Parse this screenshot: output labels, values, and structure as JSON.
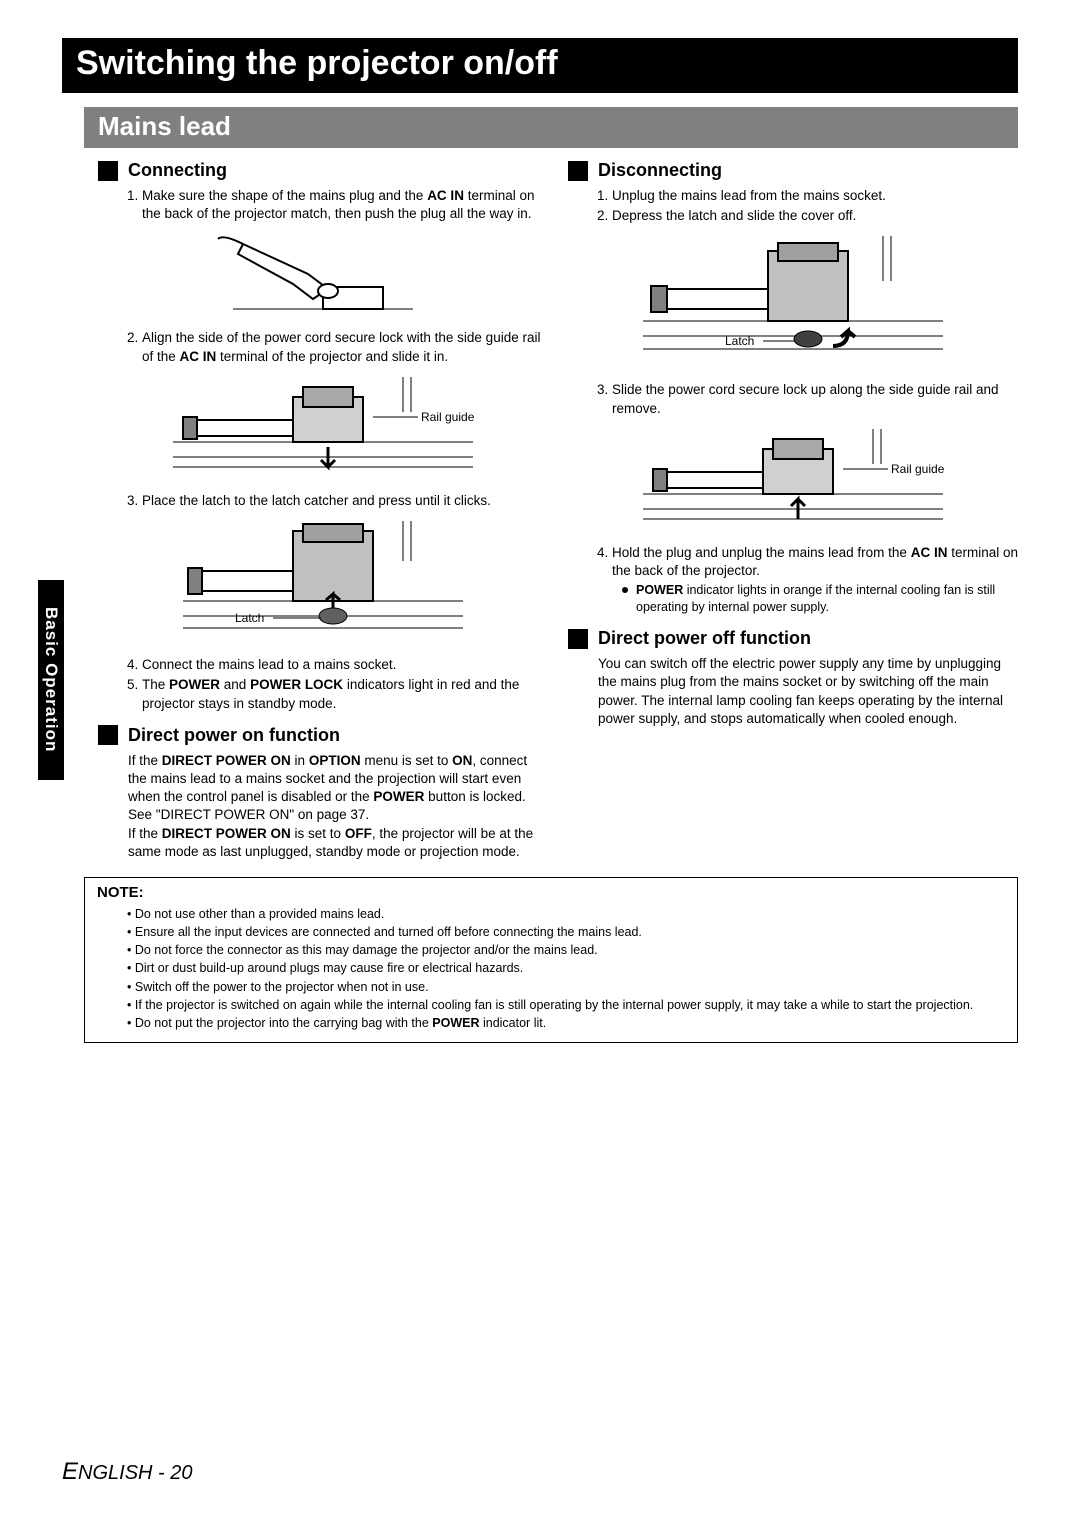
{
  "colors": {
    "black": "#000000",
    "gray": "#808080",
    "white": "#ffffff"
  },
  "main_title": "Switching the projector on/off",
  "section_title": "Mains lead",
  "side_tab": "Basic Operation",
  "left": {
    "connecting_heading": "Connecting",
    "steps_a": [
      "Make sure the shape of the mains plug and the <b>AC IN</b> terminal on the back of the projector match, then push the plug all the way in."
    ],
    "steps_b": [
      "Align the side of the power cord secure lock with the side guide rail of the <b>AC IN</b> terminal of the projector and slide it in."
    ],
    "steps_c": [
      "Place the latch to the latch catcher and press until it clicks."
    ],
    "steps_d": [
      "Connect the mains lead to a mains socket.",
      "The <b>POWER</b> and <b>POWER LOCK</b> indicators light in red and the projector stays in standby mode."
    ],
    "direct_on_heading": "Direct power on function",
    "direct_on_body": "If the <b>DIRECT POWER ON</b> in <b>OPTION</b> menu is set to <b>ON</b>, connect the mains lead to a mains socket and the projection will start even when the control panel is disabled or the <b>POWER</b> button is locked. See \"DIRECT POWER ON\" on page 37.<br>If the <b>DIRECT POWER ON</b> is set to <b>OFF</b>, the projector will be at the same mode as last unplugged, standby mode or projection mode.",
    "fig_labels": {
      "rail_guide": "Rail guide",
      "latch": "Latch"
    }
  },
  "right": {
    "disconnecting_heading": "Disconnecting",
    "steps_a": [
      "Unplug the mains lead from the mains socket.",
      "Depress the latch and slide the cover off."
    ],
    "steps_b": [
      "Slide the power cord secure lock up along the side guide rail and remove."
    ],
    "steps_c": [
      "Hold the plug and unplug the mains lead from the <b>AC IN</b> terminal on the back of the projector."
    ],
    "sub_bullet": "<b>POWER</b> indicator lights in orange if the internal cooling fan is still operating by internal power supply.",
    "direct_off_heading": "Direct power off function",
    "direct_off_body": "You can switch off the electric power supply any time by unplugging the mains plug from the mains socket or by switching off the main power. The internal lamp cooling fan keeps operating by the internal power supply, and stops automatically when cooled enough.",
    "fig_labels": {
      "rail_guide": "Rail guide",
      "latch": "Latch"
    }
  },
  "note": {
    "title": "NOTE:",
    "items": [
      "Do not use other than a provided mains lead.",
      "Ensure all the input devices are connected and turned off before connecting the mains lead.",
      "Do not force the connector as this may damage the projector and/or the mains lead.",
      "Dirt or dust build-up around plugs may cause fire or electrical hazards.",
      "Switch off the power to the projector when not in use.",
      "If the projector is switched on again while the internal cooling fan is still operating by the internal power supply, it may take a while to start the projection.",
      "Do not put the projector into the carrying bag with the <b>POWER</b> indicator lit."
    ]
  },
  "footer": {
    "lang": "ENGLISH",
    "sep": " - ",
    "page": "20"
  }
}
